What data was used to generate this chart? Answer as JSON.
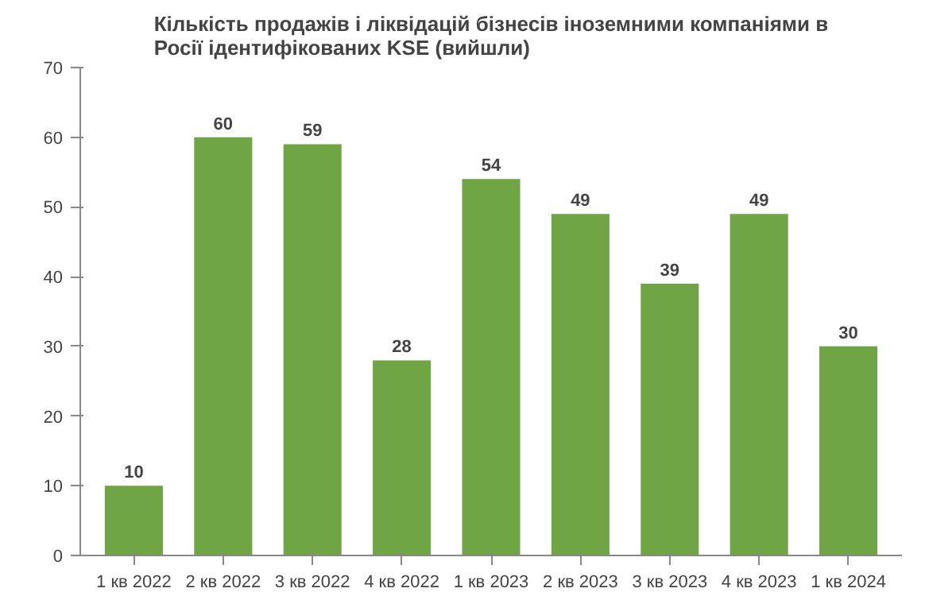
{
  "chart_data": {
    "type": "bar",
    "title": "Кількість продажів і ліквідацій бізнесів іноземними компаніями в\nРосії ідентифікованих KSE (вийшли)",
    "categories": [
      "1 кв 2022",
      "2 кв 2022",
      "3 кв 2022",
      "4 кв 2022",
      "1 кв 2023",
      "2 кв 2023",
      "3 кв 2023",
      "4 кв 2023",
      "1 кв 2024"
    ],
    "values": [
      10,
      60,
      59,
      28,
      54,
      49,
      39,
      49,
      30
    ],
    "color": "#6fa545",
    "ylim": [
      0,
      70
    ],
    "yticks": [
      0,
      10,
      20,
      30,
      40,
      50,
      60,
      70
    ],
    "grid": false,
    "data_labels": true
  }
}
